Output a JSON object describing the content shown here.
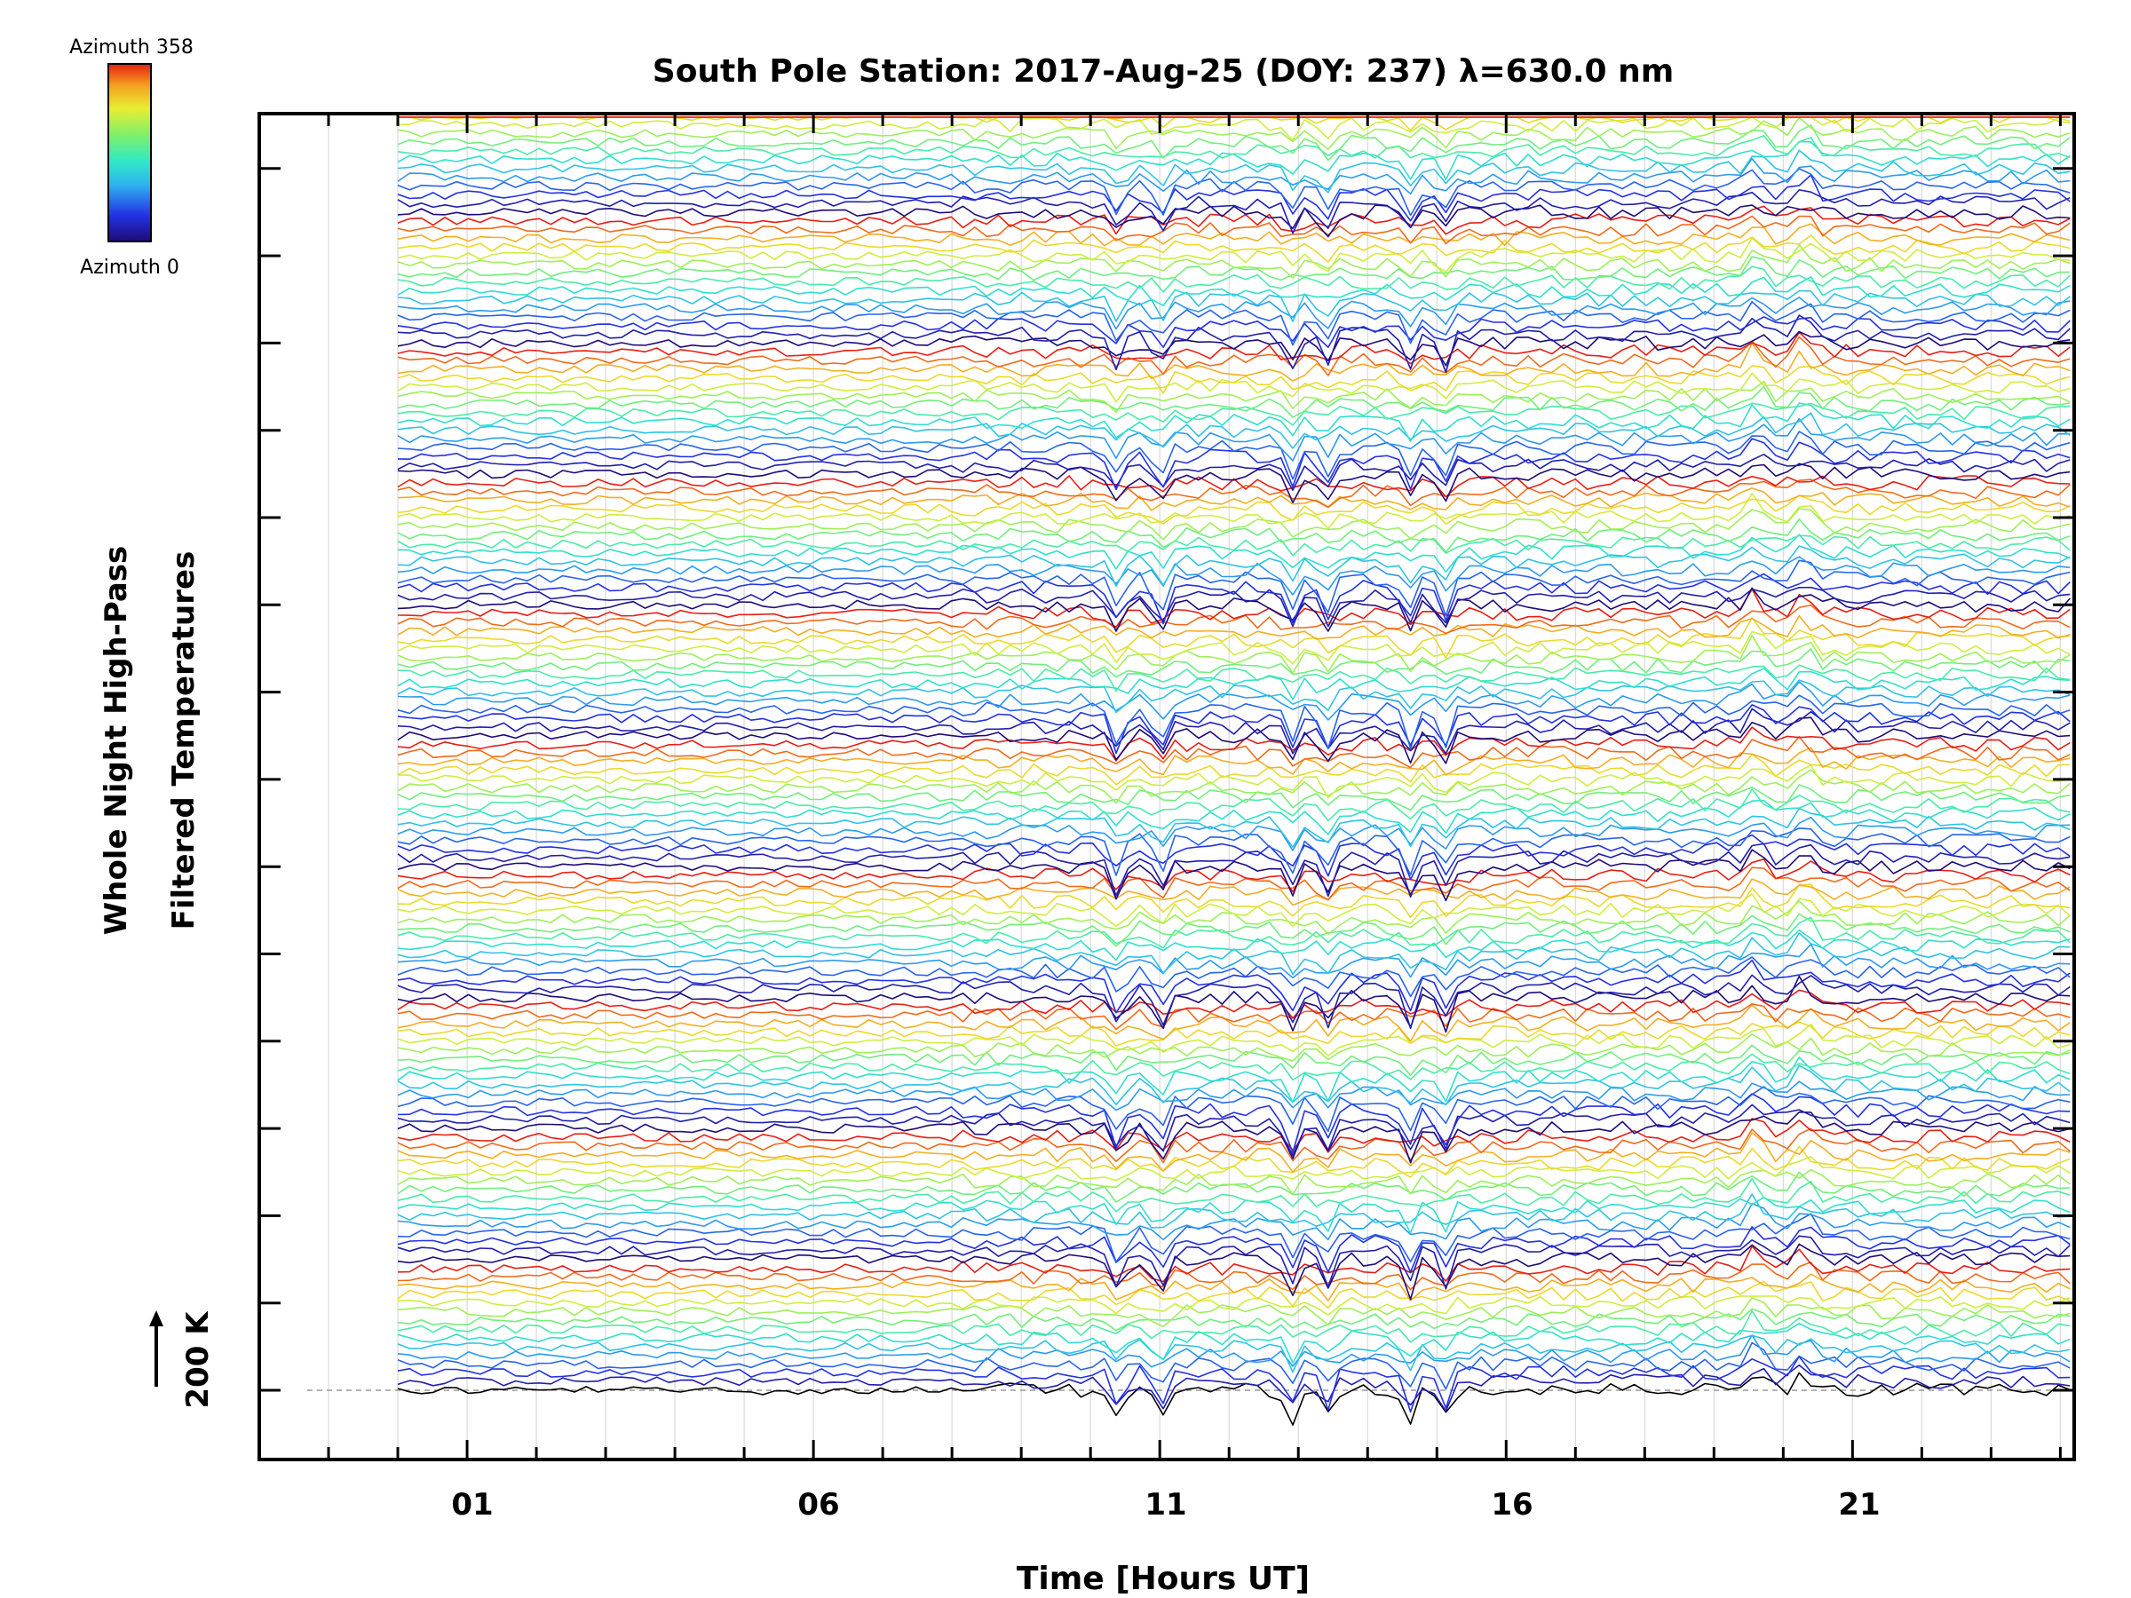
{
  "chart_data": {
    "type": "line",
    "title": "South Pole Station: 2017-Aug-25 (DOY: 237) λ=630.0 nm",
    "xlabel": "Time [Hours UT]",
    "ylabel_line1": "Whole Night High-Pass",
    "ylabel_line2": "Filtered Temperatures",
    "scale_label": "200 K",
    "xlim": [
      -2,
      24.2
    ],
    "x_major_ticks": [
      1,
      6,
      11,
      16,
      21
    ],
    "x_major_tick_labels": [
      "01",
      "06",
      "11",
      "16",
      "21"
    ],
    "x_data_range": [
      0,
      24.2
    ],
    "series_count": 150,
    "series_offset_K": 12.5,
    "groups": 10,
    "series_per_group": 15,
    "dip_times_hours": [
      10.4,
      11.0,
      12.9,
      13.4,
      14.6,
      15.1
    ],
    "peak_times_hours": [
      19.6,
      20.3
    ],
    "colorbar": {
      "top_label": "Azimuth 358",
      "bottom_label": "Azimuth 0",
      "range": [
        0,
        358
      ],
      "colormap": "rainbow"
    },
    "colors": {
      "axis": "#000000",
      "grid": "#d9d9d9",
      "baseline": "#999999"
    }
  }
}
